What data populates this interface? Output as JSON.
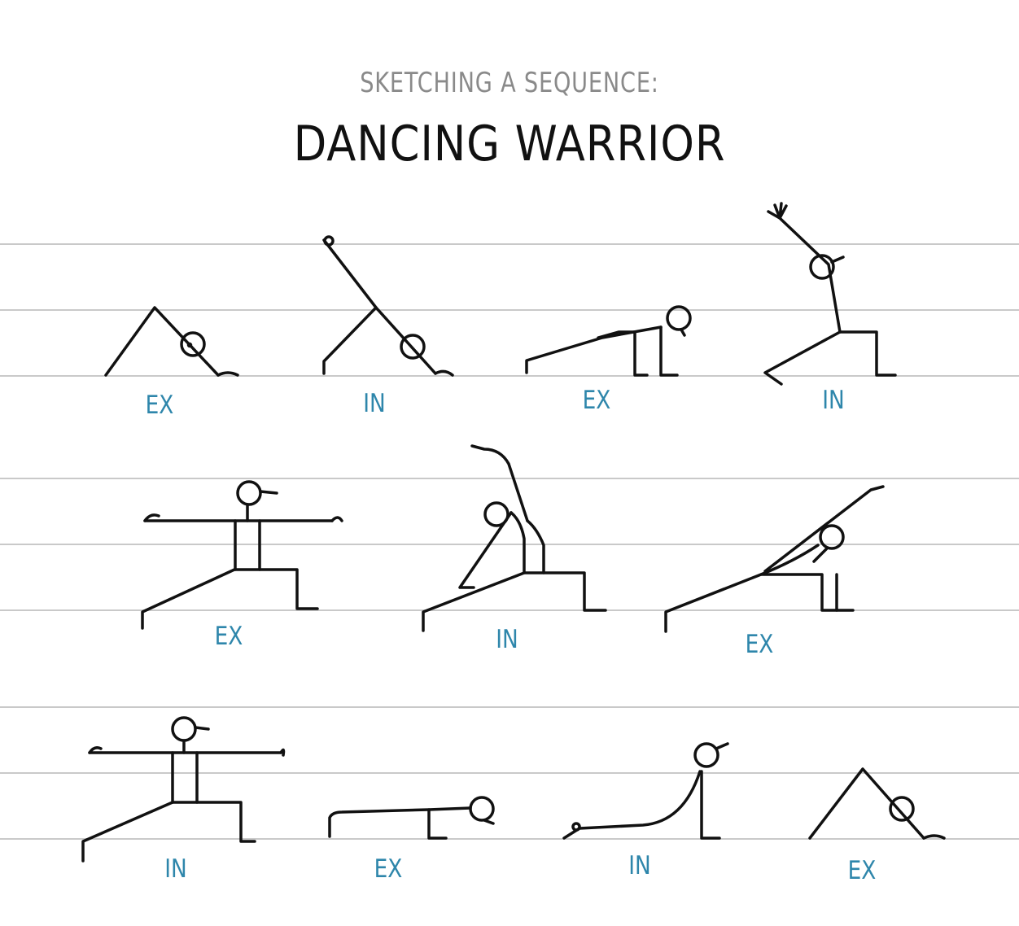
{
  "header": {
    "subtitle": "SKETCHING A SEQUENCE:",
    "title": "DANCING WARRIOR"
  },
  "poses": [
    {
      "breath": "EX",
      "icon": "downward-dog-pose-icon"
    },
    {
      "breath": "IN",
      "icon": "three-legged-dog-pose-icon"
    },
    {
      "breath": "EX",
      "icon": "low-lunge-pose-icon"
    },
    {
      "breath": "IN",
      "icon": "warrior-one-pose-icon"
    },
    {
      "breath": "EX",
      "icon": "warrior-two-pose-icon"
    },
    {
      "breath": "IN",
      "icon": "reverse-warrior-pose-icon"
    },
    {
      "breath": "EX",
      "icon": "extended-side-angle-pose-icon"
    },
    {
      "breath": "IN",
      "icon": "warrior-two-pose-icon"
    },
    {
      "breath": "EX",
      "icon": "plank-pose-icon"
    },
    {
      "breath": "IN",
      "icon": "upward-dog-pose-icon"
    },
    {
      "breath": "EX",
      "icon": "downward-dog-pose-icon"
    }
  ],
  "colors": {
    "breath_label": "#2e86ab",
    "ruling": "#c9c9c9",
    "ink": "#111111",
    "subtitle": "#8a8a8a"
  }
}
